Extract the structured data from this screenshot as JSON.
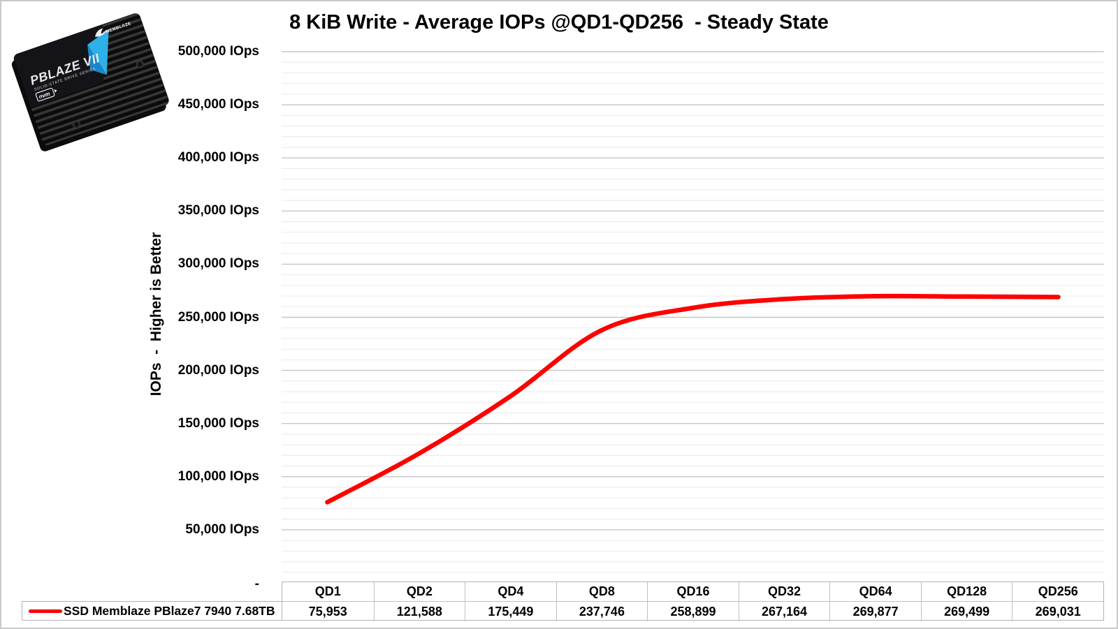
{
  "title": "8 KiB Write - Average IOPs @QD1-QD256  - Steady State",
  "y_axis": {
    "title": "IOPs  -  Higher is Better",
    "tick_labels": [
      "500,000 IOps",
      "450,000 IOps",
      "400,000 IOps",
      "350,000 IOps",
      "300,000 IOps",
      "250,000 IOps",
      "200,000 IOps",
      "150,000 IOps",
      "100,000 IOps",
      "50,000 IOps",
      "-"
    ]
  },
  "legend": {
    "series_label": "SSD Memblaze PBlaze7 7940 7.68TB",
    "swatch_color": "#fe0000"
  },
  "product_image": {
    "brand": "MEMBLAZE",
    "model": "PBLAZE VII",
    "series": "SOLID-STATE DRIVE SERIES",
    "badge": "nvm",
    "accent_color": "#2fb1e8"
  },
  "chart_data": {
    "type": "line",
    "title": "8 KiB Write - Average IOPs @QD1-QD256 - Steady State",
    "categories": [
      "QD1",
      "QD2",
      "QD4",
      "QD8",
      "QD16",
      "QD32",
      "QD64",
      "QD128",
      "QD256"
    ],
    "series": [
      {
        "name": "SSD Memblaze PBlaze7 7940 7.68TB",
        "color": "#fe0000",
        "values": [
          75953,
          121588,
          175449,
          237746,
          258899,
          267164,
          269877,
          269499,
          269031
        ],
        "values_formatted": [
          "75,953",
          "121,588",
          "175,449",
          "237,746",
          "258,899",
          "267,164",
          "269,877",
          "269,499",
          "269,031"
        ]
      }
    ],
    "xlabel": "",
    "ylabel": "IOPs - Higher is Better",
    "ylim": [
      0,
      500000
    ],
    "y_major_step": 50000,
    "y_minor_step": 10000,
    "grid": "horizontal-major-and-minor",
    "legend_position": "bottom-left",
    "line_style": "smooth",
    "colors": {
      "major_grid": "#c6c6c6",
      "minor_grid": "#e9e9e9",
      "table_border": "#b2b2b2"
    }
  }
}
